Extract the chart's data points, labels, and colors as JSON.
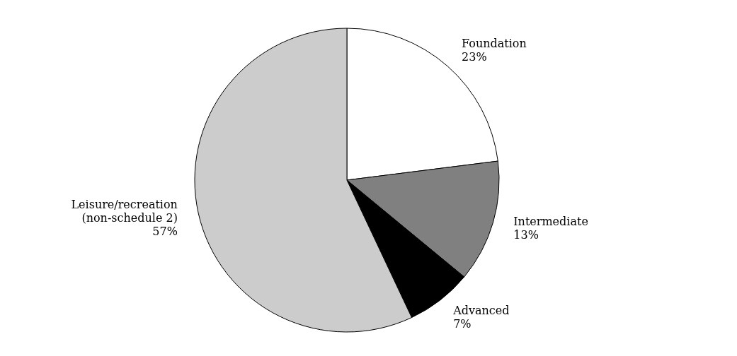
{
  "chart_data": {
    "type": "pie",
    "categories": [
      "Foundation",
      "Intermediate",
      "Advanced",
      "Leisure/recreation (non-schedule 2)"
    ],
    "values": [
      23,
      13,
      7,
      57
    ],
    "value_labels": [
      "23%",
      "13%",
      "7%",
      "57%"
    ],
    "colors": [
      "#ffffff",
      "#808080",
      "#000000",
      "#cccccc"
    ]
  }
}
